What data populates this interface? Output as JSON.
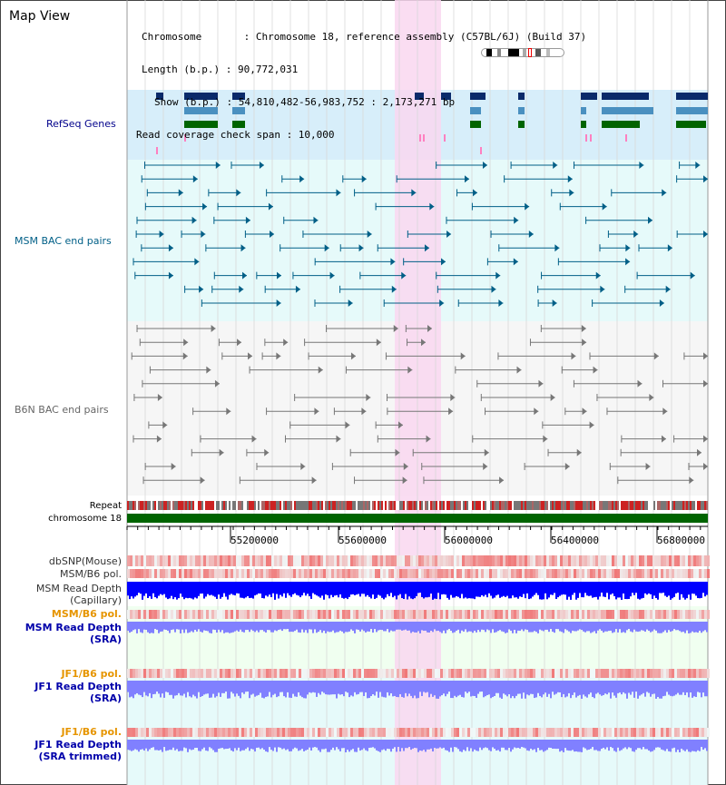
{
  "header": {
    "title": "Map View",
    "info": {
      "chromosome": "Chromosome       : Chromosome 18, reference assembly (C57BL/6J) (Build 37)",
      "length": "Length (b.p.) : 90,772,031",
      "show": "Show (b.p.) : 54,810,482-56,983,752 : 2,173,271 bp",
      "coverage": "Read coverage check span : 10,000"
    }
  },
  "tracks": {
    "refseq": {
      "label": "RefSeq Genes",
      "color": "#00008b"
    },
    "msm_bac": {
      "label": "MSM BAC end pairs",
      "color": "#005f87"
    },
    "b6n_bac": {
      "label": "B6N BAC end pairs",
      "color": "#666666"
    },
    "repeat": {
      "label": "Repeat"
    },
    "chromosome": {
      "label": "chromosome 18"
    },
    "dbsnp": {
      "label": "dbSNP(Mouse)"
    },
    "msm_b6_pol": {
      "label": "MSM/B6 pol."
    },
    "msm_depth_cap": {
      "label1": "MSM Read Depth",
      "label2": "(Capillary)"
    },
    "msm_b6_pol2": {
      "label": "MSM/B6 pol."
    },
    "msm_depth_sra": {
      "label1": "MSM Read Depth",
      "label2": "(SRA)"
    },
    "jf1_b6_pol": {
      "label": "JF1/B6 pol."
    },
    "jf1_depth_sra": {
      "label1": "JF1 Read Depth",
      "label2": "(SRA)"
    },
    "jf1_b6_pol2": {
      "label": "JF1/B6 pol."
    },
    "jf1_depth_trim": {
      "label1": "JF1 Read Depth",
      "label2": "(SRA trimmed)"
    }
  },
  "ruler": {
    "ticks": [
      "55200000",
      "55600000",
      "56000000",
      "56400000",
      "56800000"
    ]
  },
  "colors": {
    "refseq_bg": "#d7eefa",
    "msm_bg": "#e6fafa",
    "highlight": "#f9d7f0",
    "chrom_bar": "#006400",
    "depth_blue": "#0000ff",
    "depth_light": "#8080ff",
    "pol_red": "#ee3333"
  }
}
